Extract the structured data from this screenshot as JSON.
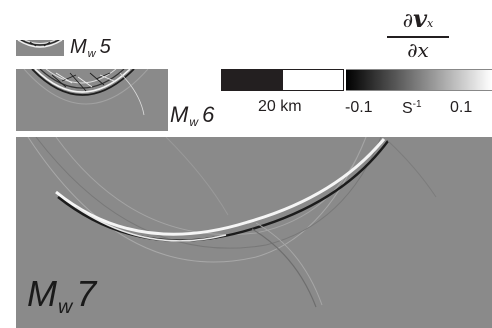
{
  "panels": [
    {
      "id": "mw5",
      "label_main": "M",
      "label_sub": "w",
      "label_value": "5"
    },
    {
      "id": "mw6",
      "label_main": "M",
      "label_sub": "w",
      "label_value": "6"
    },
    {
      "id": "mw7",
      "label_main": "M",
      "label_sub": "w",
      "label_value": "7"
    }
  ],
  "scale_bar": {
    "label": "20 km"
  },
  "colorbar": {
    "min_label": "-0.1",
    "max_label": "0.1",
    "unit_base": "S",
    "unit_exp": "-1",
    "numerator_d": "∂",
    "numerator_var": "v",
    "numerator_sub": "x",
    "denominator": "∂x"
  },
  "colors": {
    "field_background": "#8a8a8a",
    "colormap_low": "#000000",
    "colormap_high": "#ffffff",
    "text": "#231f20"
  }
}
